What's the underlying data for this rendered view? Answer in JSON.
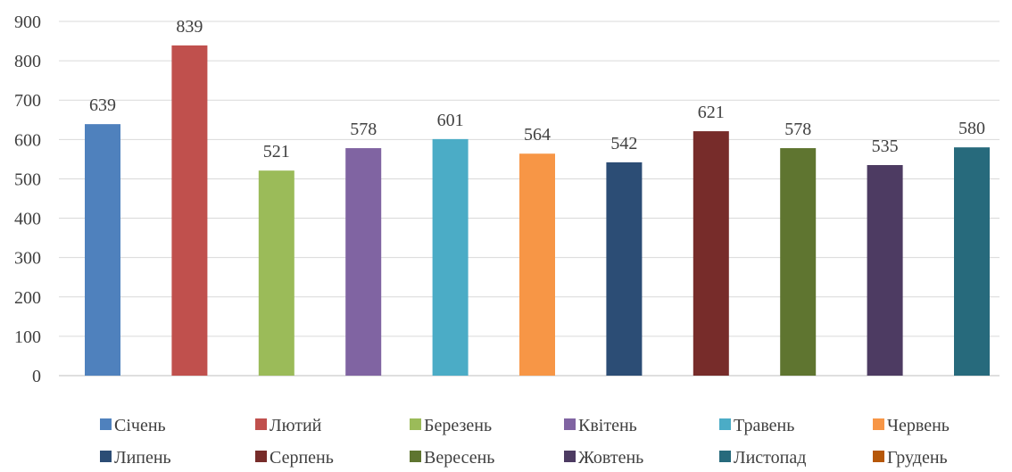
{
  "chart_data": {
    "type": "bar",
    "categories": [
      "Січень",
      "Лютий",
      "Березень",
      "Квітень",
      "Травень",
      "Червень",
      "Липень",
      "Серпень",
      "Вересень",
      "Жовтень",
      "Листопад",
      "Грудень"
    ],
    "values": [
      639,
      839,
      521,
      578,
      601,
      564,
      542,
      621,
      578,
      535,
      580,
      null
    ],
    "colors": [
      "#4F81BD",
      "#C0504D",
      "#9BBB59",
      "#8064A2",
      "#4BACC6",
      "#F79646",
      "#2C4D75",
      "#772C2A",
      "#5F7530",
      "#4D3B62",
      "#276A7C",
      "#B65708"
    ],
    "ylim": [
      0,
      900
    ],
    "yticks": [
      0,
      100,
      200,
      300,
      400,
      500,
      600,
      700,
      800,
      900
    ],
    "grid": true,
    "legend_position": "bottom",
    "data_labels": true
  }
}
